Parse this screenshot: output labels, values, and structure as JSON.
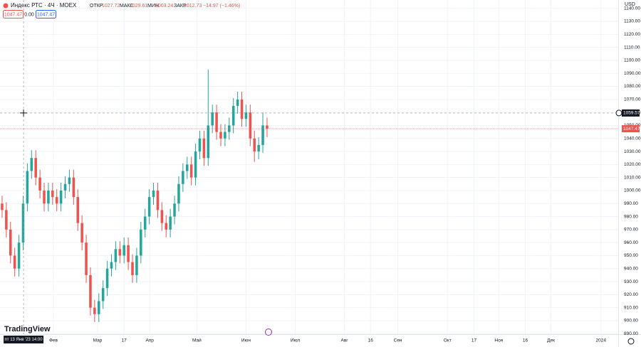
{
  "header": {
    "symbol": "Индекс РТС · 4Ч · MOEX",
    "open_label": "ОТКР",
    "open": "1027.72",
    "high_label": "МАКС",
    "high": "1029.61",
    "low_label": "МИН",
    "low": "1003.24",
    "close_label": "ЗАКР",
    "close": "1012.73",
    "change": "−14.97 (−1.46%)",
    "box1": "1047.47",
    "box2": "0.00",
    "box3": "1047.47",
    "currency": "USD",
    "logo": "TradingView"
  },
  "chart_data": {
    "type": "candlestick",
    "up_color": "#26a69a",
    "down_color": "#ef5350",
    "grid": true,
    "open": [
      990,
      985,
      970,
      950,
      940,
      960,
      990,
      1015,
      1025,
      1010,
      1000,
      990,
      1000,
      995,
      990,
      1000,
      1005,
      1010,
      995,
      975,
      960,
      935,
      910,
      905,
      915,
      925,
      940,
      945,
      955,
      950,
      958,
      945,
      935,
      950,
      970,
      980,
      995,
      1000,
      985,
      975,
      970,
      980,
      990,
      1005,
      1015,
      1020,
      1010,
      1030,
      1040,
      1025,
      1050,
      1060,
      1045,
      1040,
      1045,
      1050,
      1065,
      1070,
      1055,
      1060,
      1040,
      1030,
      1035,
      1050
    ],
    "high": [
      996,
      991,
      976,
      956,
      966,
      996,
      1021,
      1031,
      1031,
      1016,
      1006,
      1006,
      1006,
      1001,
      1006,
      1011,
      1016,
      1016,
      1001,
      981,
      966,
      941,
      916,
      921,
      931,
      946,
      951,
      961,
      961,
      964,
      964,
      951,
      956,
      976,
      986,
      1001,
      1006,
      1006,
      991,
      981,
      986,
      996,
      1011,
      1021,
      1026,
      1026,
      1036,
      1046,
      1046,
      1093,
      1066,
      1066,
      1051,
      1051,
      1056,
      1071,
      1076,
      1076,
      1066,
      1066,
      1046,
      1041,
      1060,
      1056
    ],
    "low": [
      979,
      964,
      944,
      934,
      934,
      954,
      984,
      1009,
      1004,
      994,
      984,
      984,
      989,
      984,
      984,
      994,
      999,
      989,
      969,
      954,
      929,
      904,
      899,
      899,
      909,
      919,
      934,
      939,
      944,
      944,
      939,
      929,
      929,
      944,
      964,
      974,
      989,
      979,
      969,
      964,
      964,
      974,
      984,
      999,
      1009,
      1004,
      1004,
      1024,
      1019,
      1019,
      1044,
      1039,
      1034,
      1034,
      1039,
      1044,
      1059,
      1049,
      1049,
      1034,
      1022,
      1024,
      1029,
      1041
    ],
    "close": [
      985,
      970,
      950,
      940,
      960,
      990,
      1015,
      1025,
      1010,
      1000,
      990,
      1000,
      995,
      990,
      1000,
      1005,
      1010,
      995,
      975,
      960,
      935,
      910,
      905,
      915,
      925,
      940,
      945,
      955,
      950,
      958,
      945,
      935,
      950,
      970,
      980,
      995,
      1000,
      985,
      975,
      970,
      980,
      990,
      1005,
      1015,
      1020,
      1010,
      1030,
      1040,
      1025,
      1050,
      1060,
      1045,
      1040,
      1045,
      1050,
      1065,
      1070,
      1055,
      1060,
      1040,
      1030,
      1035,
      1050,
      1047.47
    ],
    "xlim": [
      -0.5,
      146.5
    ],
    "xticks": [
      {
        "value": 12.2,
        "label": "Фев"
      },
      {
        "value": 22.7,
        "label": "Мар"
      },
      {
        "value": 29,
        "label": "17"
      },
      {
        "value": 35.1,
        "label": "Апр"
      },
      {
        "value": 46.3,
        "label": "Май"
      },
      {
        "value": 58,
        "label": "Июн"
      },
      {
        "value": 69.7,
        "label": "Июл"
      },
      {
        "value": 81.4,
        "label": "Авг"
      },
      {
        "value": 87.6,
        "label": "16"
      },
      {
        "value": 94.1,
        "label": "Сен"
      },
      {
        "value": 105.9,
        "label": "Окт"
      },
      {
        "value": 112.2,
        "label": "17"
      },
      {
        "value": 118.1,
        "label": "Ноя"
      },
      {
        "value": 124.4,
        "label": "16"
      },
      {
        "value": 130.5,
        "label": "Дек"
      },
      {
        "value": 142.4,
        "label": "2024"
      }
    ],
    "ylim": [
      889.6,
      1146.4
    ],
    "yticks": [
      {
        "value": 890,
        "label": "890.00"
      },
      {
        "value": 900,
        "label": "900.00"
      },
      {
        "value": 910,
        "label": "910.00"
      },
      {
        "value": 920,
        "label": "920.00"
      },
      {
        "value": 930,
        "label": "930.00"
      },
      {
        "value": 940,
        "label": "940.00"
      },
      {
        "value": 950,
        "label": "950.00"
      },
      {
        "value": 960,
        "label": "960.00"
      },
      {
        "value": 970,
        "label": "970.00"
      },
      {
        "value": 980,
        "label": "980.00"
      },
      {
        "value": 990,
        "label": "990.00"
      },
      {
        "value": 1000,
        "label": "1000.00"
      },
      {
        "value": 1010,
        "label": "1010.00"
      },
      {
        "value": 1020,
        "label": "1020.00"
      },
      {
        "value": 1030,
        "label": "1030.00"
      },
      {
        "value": 1040,
        "label": "1040.00"
      },
      {
        "value": 1050,
        "label": "1050.00"
      },
      {
        "value": 1060,
        "label": "1060.00"
      },
      {
        "value": 1070,
        "label": "1070.00"
      },
      {
        "value": 1080,
        "label": "1080.00"
      },
      {
        "value": 1090,
        "label": "1090.00"
      },
      {
        "value": 1100,
        "label": "1100.00"
      },
      {
        "value": 1110,
        "label": "1110.00"
      },
      {
        "value": 1120,
        "label": "1120.00"
      },
      {
        "value": 1130,
        "label": "1130.00"
      },
      {
        "value": 1140,
        "label": "1140.00"
      }
    ],
    "crosshair": {
      "x": {
        "value": 5.1,
        "label": "пт 13 Янв '23 14:00"
      },
      "y": 1059.57
    }
  }
}
